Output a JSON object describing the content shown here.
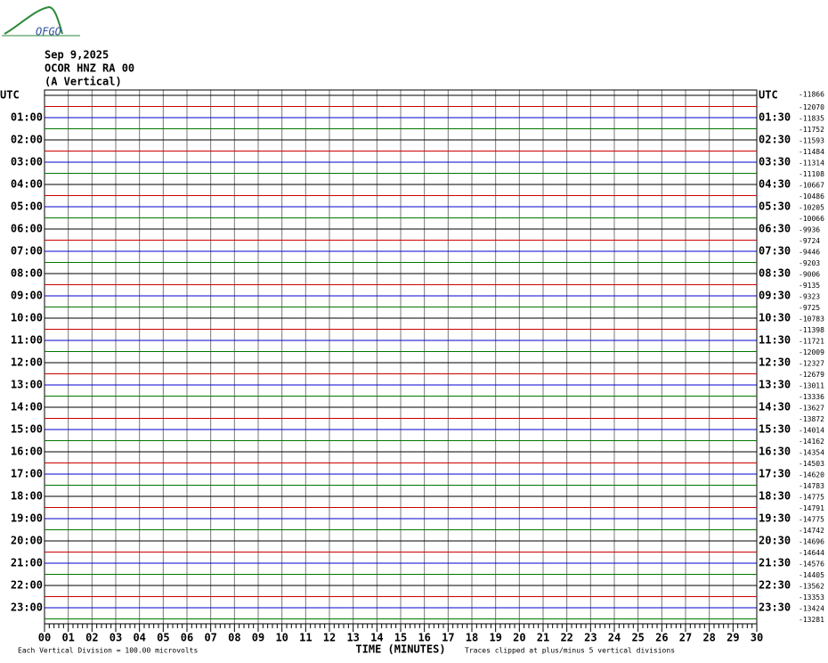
{
  "logo": "OFGO",
  "header": {
    "date": "Sep 9,2025",
    "station": "OCOR HNZ RA 00",
    "component": "(A Vertical)"
  },
  "left_labels": [
    "UTC",
    "01:00",
    "02:00",
    "03:00",
    "04:00",
    "05:00",
    "06:00",
    "07:00",
    "08:00",
    "09:00",
    "10:00",
    "11:00",
    "12:00",
    "13:00",
    "14:00",
    "15:00",
    "16:00",
    "17:00",
    "18:00",
    "19:00",
    "20:00",
    "21:00",
    "22:00",
    "23:00"
  ],
  "right_labels": [
    "UTC",
    "01:30",
    "02:30",
    "03:30",
    "04:30",
    "05:30",
    "06:30",
    "07:30",
    "08:30",
    "09:30",
    "10:30",
    "11:30",
    "12:30",
    "13:30",
    "14:30",
    "15:30",
    "16:30",
    "17:30",
    "18:30",
    "19:30",
    "20:30",
    "21:30",
    "22:30",
    "23:30"
  ],
  "right_values": [
    "-11866",
    "-12070",
    "-11835",
    "-11752",
    "-11593",
    "-11484",
    "-11314",
    "-11108",
    "-10667",
    "-10486",
    "-10205",
    "-10066",
    "-9936",
    "-9724",
    "-9446",
    "-9203",
    "-9006",
    "-9135",
    "-9323",
    "-9725",
    "-10783",
    "-11398",
    "-11721",
    "-12009",
    "-12327",
    "-12679",
    "-13011",
    "-13336",
    "-13627",
    "-13872",
    "-14014",
    "-14162",
    "-14354",
    "-14503",
    "-14620",
    "-14783",
    "-14775",
    "-14791",
    "-14775",
    "-14742",
    "-14696",
    "-14644",
    "-14576",
    "-14405",
    "-13562",
    "-13353",
    "-13424",
    "-13281"
  ],
  "x_labels": [
    "00",
    "01",
    "02",
    "03",
    "04",
    "05",
    "06",
    "07",
    "08",
    "09",
    "10",
    "11",
    "12",
    "13",
    "14",
    "15",
    "16",
    "17",
    "18",
    "19",
    "20",
    "21",
    "22",
    "23",
    "24",
    "25",
    "26",
    "27",
    "28",
    "29",
    "30"
  ],
  "x_title": "TIME (MINUTES)",
  "footer_left": "Each Vertical Division =  100.00 microvolts",
  "footer_right": "Traces clipped at plus/minus 5 vertical divisions",
  "trace_colors": [
    "#000000",
    "#cc0000",
    "#0000cc",
    "#007700"
  ]
}
